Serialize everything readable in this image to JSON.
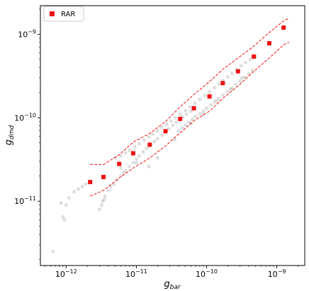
{
  "chart_data": {
    "type": "scatter",
    "xscale": "log",
    "yscale": "log",
    "xlim": [
      4.3e-13,
      2.5e-09
    ],
    "ylim": [
      1.7e-12,
      2.2e-09
    ],
    "xlabel": "g",
    "xlabel_sub": "bar",
    "ylabel": "g",
    "ylabel_sub": "dmd",
    "x_ticks": [
      1e-12,
      1e-11,
      1e-10,
      1e-09
    ],
    "x_tick_labels": [
      {
        "base": "10",
        "exp": "−12"
      },
      {
        "base": "10",
        "exp": "−11"
      },
      {
        "base": "10",
        "exp": "−10"
      },
      {
        "base": "10",
        "exp": "−9"
      }
    ],
    "y_ticks": [
      1e-11,
      1e-10,
      1e-09
    ],
    "y_tick_labels": [
      {
        "base": "10",
        "exp": "−11"
      },
      {
        "base": "10",
        "exp": "−10"
      },
      {
        "base": "10",
        "exp": "−9"
      }
    ],
    "legend": {
      "position": "top-left",
      "entries": [
        "RAR"
      ]
    },
    "grid": false,
    "colors": {
      "rar": "#ee1111",
      "band": "#ee1111",
      "cloud": "#808080"
    },
    "series": [
      {
        "name": "RAR",
        "marker": "square",
        "x": [
          2.2e-12,
          3.4e-12,
          5.7e-12,
          9e-12,
          1.55e-11,
          2.6e-11,
          4.2e-11,
          6.6e-11,
          1.1e-10,
          1.7e-10,
          2.8e-10,
          4.7e-10,
          7.8e-10,
          1.25e-09
        ],
        "y": [
          1.7e-11,
          1.95e-11,
          2.8e-11,
          3.75e-11,
          4.75e-11,
          6.9e-11,
          9.7e-11,
          1.3e-10,
          1.8e-10,
          2.6e-10,
          3.6e-10,
          5.4e-10,
          7.8e-10,
          1.2e-09
        ]
      },
      {
        "name": "",
        "style": "dashed",
        "x": [
          2.2e-12,
          3.4e-12,
          5.7e-12,
          9e-12,
          1.55e-11,
          2.6e-11,
          4.2e-11,
          6.6e-11,
          1.1e-10,
          1.7e-10,
          2.8e-10,
          4.7e-10,
          7.8e-10,
          1.25e-09,
          1.5e-09
        ],
        "y": [
          2.75e-11,
          2.75e-11,
          3.6e-11,
          5.1e-11,
          6.5e-11,
          9e-11,
          1.35e-10,
          1.9e-10,
          2.7e-10,
          3.8e-10,
          5.2e-10,
          7.2e-10,
          1.05e-09,
          1.45e-09,
          1.55e-09
        ]
      },
      {
        "name": "",
        "style": "dashed",
        "x": [
          2.2e-12,
          3.4e-12,
          5.7e-12,
          9e-12,
          1.55e-11,
          2.6e-11,
          4.2e-11,
          6.6e-11,
          1.1e-10,
          1.7e-10,
          2.8e-10,
          4.7e-10,
          7.8e-10,
          1.25e-09,
          1.5e-09
        ],
        "y": [
          1.15e-11,
          1.35e-11,
          1.9e-11,
          2.5e-11,
          3.3e-11,
          4.6e-11,
          6.6e-11,
          9.2e-11,
          1.2e-10,
          1.7e-10,
          2.4e-10,
          3.6e-10,
          5.2e-10,
          7.5e-10,
          8e-10
        ]
      },
      {
        "name": "",
        "marker": "circle",
        "x": [
          6.5e-13,
          8.5e-13,
          9e-13,
          9.5e-13,
          1e-12,
          1.1e-12,
          1.3e-12,
          1.5e-12,
          1.7e-12,
          1.9e-12,
          3e-12,
          3.2e-12,
          3.3e-12,
          3.5e-12,
          3.6e-12,
          4e-12,
          4.3e-12,
          4.8e-12,
          5.3e-12,
          6e-12,
          6.5e-12,
          7e-12,
          8e-12,
          9e-12,
          1e-11,
          1.1e-11,
          1.25e-11,
          1.4e-11,
          1.6e-11,
          1.8e-11,
          2e-11,
          2.3e-11,
          2.6e-11,
          2.9e-11,
          3.3e-11,
          3.7e-11,
          4.1e-11,
          4.6e-11,
          5.2e-11,
          6e-11,
          5e-12,
          6e-12,
          7e-12,
          8e-12,
          9.5e-12,
          1.1e-11,
          1.3e-11,
          1.5e-11,
          1.7e-11,
          2e-11,
          2.3e-11,
          2.7e-11,
          3.1e-11,
          3.6e-11,
          4.2e-11,
          5e-11,
          5.8e-11,
          6.8e-11,
          8e-11,
          9.5e-11,
          1.1e-10,
          1.3e-10,
          1.5e-10,
          1.7e-10,
          2e-10,
          2.3e-10,
          2.7e-10,
          3.1e-10,
          3.6e-10,
          4.2e-10,
          5e-10,
          4e-11,
          4.5e-11,
          5e-11,
          5.6e-11,
          6.3e-11,
          7e-11,
          8e-11,
          9e-11,
          1e-10,
          1.15e-10,
          1.3e-10,
          1.5e-10,
          1.7e-10,
          2e-10,
          2.3e-10,
          2.6e-10,
          3e-10,
          3.5e-10,
          4e-10,
          4.5e-10,
          6e-12,
          1e-11,
          1.5e-11,
          2e-11,
          3.5e-11,
          6e-11,
          9e-11,
          1.4e-10,
          2.2e-10,
          3.2e-10
        ],
        "y": [
          2.5e-12,
          9.5e-12,
          6.5e-12,
          6e-12,
          9e-12,
          1.1e-11,
          1.3e-11,
          1.4e-11,
          1.5e-11,
          1.6e-11,
          8e-12,
          9e-12,
          1e-11,
          1.05e-11,
          1.15e-11,
          1.35e-11,
          1.5e-11,
          1.6e-11,
          1.8e-11,
          2e-11,
          2.2e-11,
          2.3e-11,
          2.6e-11,
          2.9e-11,
          3.2e-11,
          3.5e-11,
          3.9e-11,
          4.3e-11,
          4.7e-11,
          5.2e-11,
          5.6e-11,
          6.2e-11,
          6.8e-11,
          7.4e-11,
          8.1e-11,
          8.8e-11,
          9.5e-11,
          1.02e-10,
          1.1e-10,
          1.2e-10,
          3.3e-11,
          3.5e-11,
          3.8e-11,
          4.1e-11,
          4.5e-11,
          4.9e-11,
          5.4e-11,
          5.9e-11,
          6.4e-11,
          7e-11,
          7.7e-11,
          8.4e-11,
          9.2e-11,
          1e-10,
          1.1e-10,
          1.22e-10,
          1.35e-10,
          1.5e-10,
          1.65e-10,
          1.85e-10,
          2.05e-10,
          2.3e-10,
          2.55e-10,
          2.8e-10,
          3.1e-10,
          3.4e-10,
          3.8e-10,
          4.2e-10,
          4.6e-10,
          5e-10,
          5.4e-10,
          7e-11,
          7.6e-11,
          8.2e-11,
          8.9e-11,
          9.6e-11,
          1.04e-10,
          1.12e-10,
          1.21e-10,
          1.3e-10,
          1.42e-10,
          1.55e-10,
          1.7e-10,
          1.86e-10,
          2.05e-10,
          2.25e-10,
          2.48e-10,
          2.75e-10,
          3.05e-10,
          3.35e-10,
          3.7e-10,
          2.5e-11,
          2.9e-11,
          2.6e-11,
          3.3e-11,
          5.5e-11,
          8.5e-11,
          1.1e-10,
          1.6e-10,
          2.2e-10,
          3e-10
        ]
      }
    ]
  }
}
